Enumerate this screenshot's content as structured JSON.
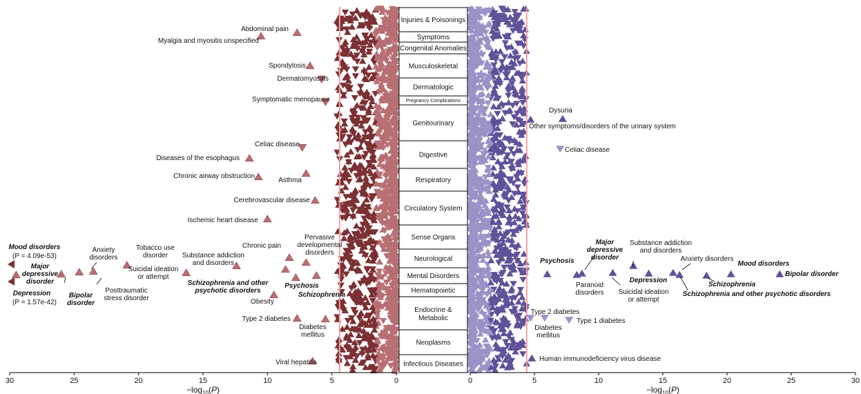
{
  "chart_data": [
    {
      "type": "scatter",
      "panel": "left",
      "xlabel": "−log10(P)",
      "xlim": [
        0,
        30
      ],
      "x_reversed": true,
      "x_ticks": [
        "0",
        "5",
        "10",
        "15",
        "20",
        "25",
        "30"
      ],
      "threshold": 4.4,
      "colors": {
        "dark": "#7b3033",
        "light": "#b86f73",
        "threshold": "#f2a0a0"
      },
      "labeled_points": [
        {
          "label": "Abdominal pain",
          "x": 7.7,
          "category": "Injuries & Poisonings",
          "marker": "up"
        },
        {
          "label": "Myalgia and myositis unspecified",
          "x": 10.5,
          "category": "Symptoms",
          "marker": "up"
        },
        {
          "label": "Spondylosis",
          "x": 6.7,
          "category": "Musculoskeletal",
          "marker": "up"
        },
        {
          "label": "Dermatomyositis",
          "x": 5.8,
          "category": "Dermatologic",
          "marker": "down"
        },
        {
          "label": "Symptomatic menopause",
          "x": 5.5,
          "category": "Pregnancy Complications",
          "marker": "down"
        },
        {
          "label": "Celiac disease",
          "x": 7.3,
          "category": "Digestive",
          "marker": "down"
        },
        {
          "label": "Diseases of the esophagus",
          "x": 11.4,
          "category": "Digestive",
          "marker": "up"
        },
        {
          "label": "Chronic airway obstruction",
          "x": 10.7,
          "category": "Respiratory",
          "marker": "up"
        },
        {
          "label": "Asthma",
          "x": 7.0,
          "category": "Respiratory",
          "marker": "up"
        },
        {
          "label": "Cerebrovascular disease",
          "x": 6.3,
          "category": "Circulatory System",
          "marker": "up"
        },
        {
          "label": "Ischemic heart disease",
          "x": 10.0,
          "category": "Circulatory System",
          "marker": "up"
        },
        {
          "label": "Mood disorders",
          "x": 30,
          "category": "Mental Disorders",
          "marker": "arrow"
        },
        {
          "label": "Major depressive disorder",
          "x": 29.5,
          "category": "Mental Disorders",
          "marker": "up"
        },
        {
          "label": "Depression",
          "x": 30,
          "category": "Mental Disorders",
          "marker": "arrow"
        },
        {
          "label": "Bipolar disorder",
          "x": 26.0,
          "category": "Mental Disorders",
          "marker": "up"
        },
        {
          "label": "Anxiety disorders",
          "x": 24.6,
          "category": "Mental Disorders",
          "marker": "up"
        },
        {
          "label": "Posttraumatic stress disorder",
          "x": 23.5,
          "category": "Mental Disorders",
          "marker": "up"
        },
        {
          "label": "Tobacco use disorder",
          "x": 20.9,
          "category": "Mental Disorders",
          "marker": "up"
        },
        {
          "label": "Suicidal ideation or attempt",
          "x": 16.3,
          "category": "Mental Disorders",
          "marker": "up"
        },
        {
          "label": "Substance addiction and disorders",
          "x": 12.4,
          "category": "Mental Disorders",
          "marker": "up"
        },
        {
          "label": "Schizophrenia and other psychotic disorders",
          "x": 8.6,
          "category": "Mental Disorders",
          "marker": "up"
        },
        {
          "label": "Chronic pain",
          "x": 8.3,
          "category": "Neurological",
          "marker": "up"
        },
        {
          "label": "Pervasive developmental disorders",
          "x": 7.0,
          "category": "Neurological",
          "marker": "up"
        },
        {
          "label": "Psychosis",
          "x": 7.8,
          "category": "Mental Disorders",
          "marker": "up"
        },
        {
          "label": "Schizophrenia",
          "x": 6.2,
          "category": "Mental Disorders",
          "marker": "up"
        },
        {
          "label": "Obesity",
          "x": 9.5,
          "category": "Endocrine & Metabolic",
          "marker": "up"
        },
        {
          "label": "Type 2 diabetes",
          "x": 7.7,
          "category": "Endocrine & Metabolic",
          "marker": "up"
        },
        {
          "label": "Diabetes mellitus",
          "x": 5.5,
          "category": "Endocrine & Metabolic",
          "marker": "up"
        },
        {
          "label": "Viral hepatitis",
          "x": 6.5,
          "category": "Infectious Diseases",
          "marker": "up"
        }
      ]
    },
    {
      "type": "scatter",
      "panel": "right",
      "xlabel": "−log10(P)",
      "xlim": [
        0,
        30
      ],
      "x_ticks": [
        "0",
        "5",
        "10",
        "15",
        "20",
        "25",
        "30"
      ],
      "threshold": 4.4,
      "colors": {
        "dark": "#5e5299",
        "light": "#9b92c7",
        "threshold": "#f2a0a0"
      },
      "labeled_points": [
        {
          "label": "Dysuria",
          "x": 7.2,
          "category": "Genitourinary",
          "marker": "up"
        },
        {
          "label": "Other symptoms/disorders of the urinary system",
          "x": 4.7,
          "category": "Genitourinary",
          "marker": "up"
        },
        {
          "label": "Celiac disease",
          "x": 7.0,
          "category": "Digestive",
          "marker": "down"
        },
        {
          "label": "Psychosis",
          "x": 6.0,
          "category": "Mental Disorders",
          "marker": "up"
        },
        {
          "label": "Major depressive disorder",
          "x": 8.7,
          "category": "Mental Disorders",
          "marker": "up"
        },
        {
          "label": "Paranoid disorders",
          "x": 8.3,
          "category": "Mental Disorders",
          "marker": "up"
        },
        {
          "label": "Substance addiction and disorders",
          "x": 12.7,
          "category": "Mental Disorders",
          "marker": "up"
        },
        {
          "label": "Suicidal ideation or attempt",
          "x": 11.1,
          "category": "Mental Disorders",
          "marker": "up"
        },
        {
          "label": "Depression",
          "x": 13.9,
          "category": "Mental Disorders",
          "marker": "up"
        },
        {
          "label": "Anxiety disorders",
          "x": 15.8,
          "category": "Mental Disorders",
          "marker": "up"
        },
        {
          "label": "Schizophrenia and other psychotic disorders",
          "x": 16.3,
          "category": "Mental Disorders",
          "marker": "up"
        },
        {
          "label": "Schizophrenia",
          "x": 18.4,
          "category": "Mental Disorders",
          "marker": "up"
        },
        {
          "label": "Mood disorders",
          "x": 20.3,
          "category": "Mental Disorders",
          "marker": "up"
        },
        {
          "label": "Bipolar disorder",
          "x": 24.1,
          "category": "Mental Disorders",
          "marker": "up"
        },
        {
          "label": "Type 2 diabetes",
          "x": 5.8,
          "category": "Endocrine & Metabolic",
          "marker": "down"
        },
        {
          "label": "Type 1 diabetes",
          "x": 7.7,
          "category": "Endocrine & Metabolic",
          "marker": "down"
        },
        {
          "label": "Diabetes mellitus",
          "x": 4.7,
          "category": "Endocrine & Metabolic",
          "marker": "down"
        },
        {
          "label": "Human immunodeficiency virus disease",
          "x": 4.8,
          "category": "Infectious Diseases",
          "marker": "up"
        }
      ]
    }
  ],
  "categories": [
    "Injuries & Poisonings",
    "Symptoms",
    "Congenital Anomalies",
    "Musculoskeletal",
    "Dermatologic",
    "Pregnancy Complications",
    "Genitourinary",
    "Digestive",
    "Respiratory",
    "Circulatory System",
    "Sense Organs",
    "Neurological",
    "Mental Disorders",
    "Hematopoietic",
    "Endocrine & Metabolic",
    "Neoplasms",
    "Infectious Diseases"
  ],
  "annotations": {
    "mood_p": "(P = 4.09e-53)",
    "depression_p": "(P = 1.57e-42)"
  }
}
